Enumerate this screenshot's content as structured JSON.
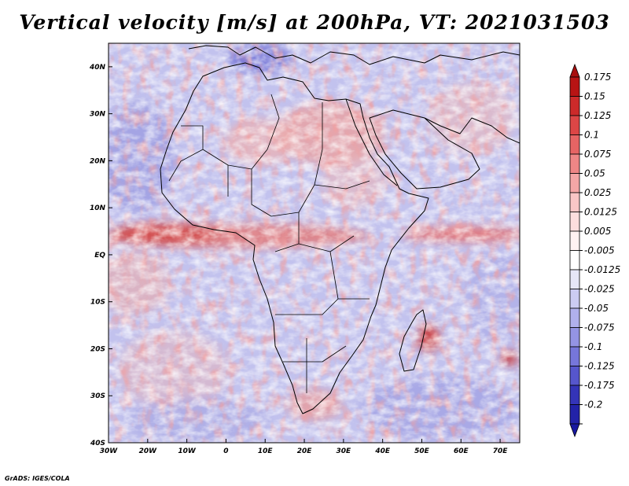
{
  "title": "Vertical velocity [m/s] at 200hPa, VT: 2021031503",
  "credit": "GrADS: IGES/COLA",
  "map": {
    "variable": "Vertical velocity",
    "units": "m/s",
    "level": "200hPa",
    "valid_time": "2021031503",
    "lon_range": [
      -30,
      75
    ],
    "lat_range": [
      -40,
      45
    ],
    "lon_ticks": [
      {
        "value": -30,
        "label": "30W"
      },
      {
        "value": -20,
        "label": "20W"
      },
      {
        "value": -10,
        "label": "10W"
      },
      {
        "value": 0,
        "label": "0"
      },
      {
        "value": 10,
        "label": "10E"
      },
      {
        "value": 20,
        "label": "20E"
      },
      {
        "value": 30,
        "label": "30E"
      },
      {
        "value": 40,
        "label": "40E"
      },
      {
        "value": 50,
        "label": "50E"
      },
      {
        "value": 60,
        "label": "60E"
      },
      {
        "value": 70,
        "label": "70E"
      }
    ],
    "lat_ticks": [
      {
        "value": 40,
        "label": "40N"
      },
      {
        "value": 30,
        "label": "30N"
      },
      {
        "value": 20,
        "label": "20N"
      },
      {
        "value": 10,
        "label": "10N"
      },
      {
        "value": 0,
        "label": "EQ"
      },
      {
        "value": -10,
        "label": "10S"
      },
      {
        "value": -20,
        "label": "20S"
      },
      {
        "value": -30,
        "label": "30S"
      },
      {
        "value": -40,
        "label": "40S"
      }
    ]
  },
  "colorbar": {
    "levels": [
      {
        "label": "0.175",
        "color": "#b81414"
      },
      {
        "label": "0.15",
        "color": "#cc2a2a"
      },
      {
        "label": "0.125",
        "color": "#dc4646"
      },
      {
        "label": "0.1",
        "color": "#e66464"
      },
      {
        "label": "0.075",
        "color": "#ee8686"
      },
      {
        "label": "0.05",
        "color": "#f4a6a6"
      },
      {
        "label": "0.025",
        "color": "#f9c6c6"
      },
      {
        "label": "0.0125",
        "color": "#fcdede"
      },
      {
        "label": "0.005",
        "color": "#fff2f2"
      },
      {
        "label": "-0.005",
        "color": "#ffffff"
      },
      {
        "label": "-0.0125",
        "color": "#e6e6f8"
      },
      {
        "label": "-0.025",
        "color": "#ccccf2"
      },
      {
        "label": "-0.05",
        "color": "#b0b0ec"
      },
      {
        "label": "-0.075",
        "color": "#9494e4"
      },
      {
        "label": "-0.1",
        "color": "#7676da"
      },
      {
        "label": "-0.125",
        "color": "#5656cc"
      },
      {
        "label": "-0.175",
        "color": "#3434b8"
      },
      {
        "label": "-0.2",
        "color": "#2222a8"
      }
    ],
    "top_color": "#a80e0e",
    "bottom_color": "#1818a0"
  },
  "colors": {
    "coast": "#000000",
    "positive": "#e05050",
    "negative": "#5a5ad0"
  }
}
